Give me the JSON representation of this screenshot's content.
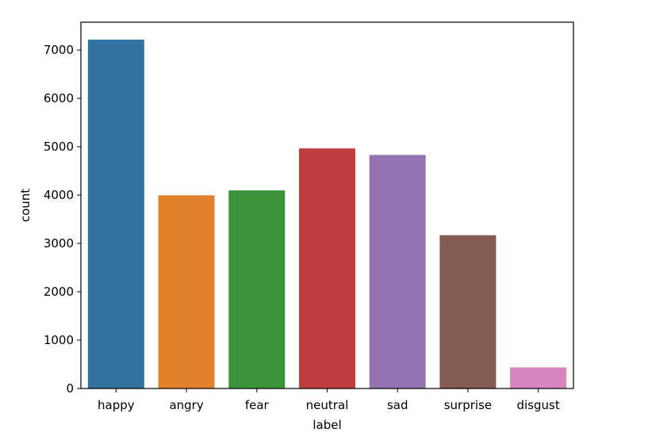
{
  "chart_data": {
    "type": "bar",
    "title": "",
    "xlabel": "label",
    "ylabel": "count",
    "categories": [
      "happy",
      "angry",
      "fear",
      "neutral",
      "sad",
      "surprise",
      "disgust"
    ],
    "values": [
      7215,
      3995,
      4097,
      4965,
      4830,
      3171,
      436
    ],
    "colors": [
      "#3274a1",
      "#e1812c",
      "#3a923a",
      "#c03d3e",
      "#9372b2",
      "#845b53",
      "#d684bd"
    ],
    "ylim": [
      0,
      7575
    ],
    "yticks": [
      0,
      1000,
      2000,
      3000,
      4000,
      5000,
      6000,
      7000
    ],
    "grid": false,
    "legend": "none"
  }
}
